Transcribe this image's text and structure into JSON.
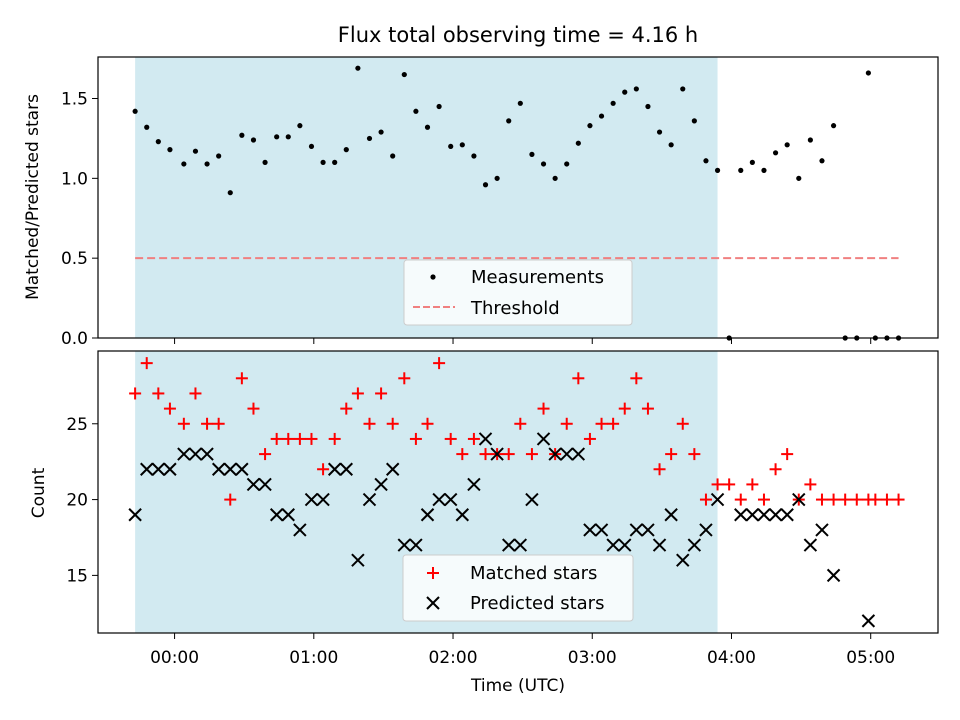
{
  "chart_data": [
    {
      "type": "scatter",
      "title": "Flux total observing time = 4.16 h",
      "xlabel": "",
      "ylabel": "Matched/Predicted stars",
      "ylim": [
        0,
        1.76
      ],
      "yticks": [
        0.0,
        0.5,
        1.0,
        1.5
      ],
      "ytick_labels": [
        "0.0",
        "0.5",
        "1.0",
        "1.5"
      ],
      "shaded_region": {
        "start": "23:43",
        "end": "03:54",
        "color": "#add8e6"
      },
      "threshold": {
        "name": "Threshold",
        "value": 0.5,
        "color": "#f08080",
        "style": "dashed",
        "range": [
          "23:43",
          "05:12"
        ]
      },
      "legend": {
        "placement": "lower center",
        "entries": [
          "Measurements",
          "Threshold"
        ]
      },
      "series": [
        {
          "name": "Measurements",
          "color": "#000000",
          "marker": "dot",
          "points": [
            [
              "23:43",
              1.42
            ],
            [
              "23:48",
              1.32
            ],
            [
              "23:53",
              1.23
            ],
            [
              "23:58",
              1.18
            ],
            [
              "00:04",
              1.09
            ],
            [
              "00:09",
              1.17
            ],
            [
              "00:14",
              1.09
            ],
            [
              "00:19",
              1.14
            ],
            [
              "00:24",
              0.91
            ],
            [
              "00:29",
              1.27
            ],
            [
              "00:34",
              1.24
            ],
            [
              "00:39",
              1.1
            ],
            [
              "00:44",
              1.26
            ],
            [
              "00:49",
              1.26
            ],
            [
              "00:54",
              1.33
            ],
            [
              "00:59",
              1.2
            ],
            [
              "01:04",
              1.1
            ],
            [
              "01:09",
              1.1
            ],
            [
              "01:14",
              1.18
            ],
            [
              "01:19",
              1.69
            ],
            [
              "01:24",
              1.25
            ],
            [
              "01:29",
              1.29
            ],
            [
              "01:34",
              1.14
            ],
            [
              "01:39",
              1.65
            ],
            [
              "01:44",
              1.42
            ],
            [
              "01:49",
              1.32
            ],
            [
              "01:54",
              1.45
            ],
            [
              "01:59",
              1.2
            ],
            [
              "02:04",
              1.21
            ],
            [
              "02:09",
              1.14
            ],
            [
              "02:14",
              0.96
            ],
            [
              "02:19",
              1.0
            ],
            [
              "02:24",
              1.36
            ],
            [
              "02:29",
              1.47
            ],
            [
              "02:34",
              1.15
            ],
            [
              "02:39",
              1.09
            ],
            [
              "02:44",
              1.0
            ],
            [
              "02:49",
              1.09
            ],
            [
              "02:54",
              1.22
            ],
            [
              "02:59",
              1.33
            ],
            [
              "03:04",
              1.39
            ],
            [
              "03:09",
              1.47
            ],
            [
              "03:14",
              1.54
            ],
            [
              "03:19",
              1.56
            ],
            [
              "03:24",
              1.45
            ],
            [
              "03:29",
              1.29
            ],
            [
              "03:34",
              1.21
            ],
            [
              "03:39",
              1.56
            ],
            [
              "03:44",
              1.36
            ],
            [
              "03:49",
              1.11
            ],
            [
              "03:54",
              1.05
            ],
            [
              "03:59",
              0.0
            ],
            [
              "04:04",
              1.05
            ],
            [
              "04:09",
              1.1
            ],
            [
              "04:14",
              1.05
            ],
            [
              "04:19",
              1.16
            ],
            [
              "04:24",
              1.21
            ],
            [
              "04:29",
              1.0
            ],
            [
              "04:34",
              1.24
            ],
            [
              "04:39",
              1.11
            ],
            [
              "04:44",
              1.33
            ],
            [
              "04:49",
              0.0
            ],
            [
              "04:54",
              0.0
            ],
            [
              "04:59",
              1.66
            ],
            [
              "05:02",
              0.0
            ],
            [
              "05:07",
              0.0
            ],
            [
              "05:12",
              0.0
            ]
          ]
        }
      ]
    },
    {
      "type": "scatter",
      "title": "",
      "xlabel": "Time (UTC)",
      "ylabel": "Count",
      "ylim": [
        11.2,
        29.8
      ],
      "yticks": [
        15,
        20,
        25
      ],
      "ytick_labels": [
        "15",
        "20",
        "25"
      ],
      "xticks": [
        "00:00",
        "01:00",
        "02:00",
        "03:00",
        "04:00",
        "05:00"
      ],
      "xlim": [
        "23:27",
        "05:29"
      ],
      "shaded_region": {
        "start": "23:43",
        "end": "03:54",
        "color": "#add8e6"
      },
      "legend": {
        "placement": "lower center",
        "entries": [
          "Matched stars",
          "Predicted stars"
        ]
      },
      "series": [
        {
          "name": "Matched stars",
          "color": "#ff0000",
          "marker": "plus",
          "points": [
            [
              "23:43",
              27
            ],
            [
              "23:48",
              29
            ],
            [
              "23:53",
              27
            ],
            [
              "23:58",
              26
            ],
            [
              "00:04",
              25
            ],
            [
              "00:09",
              27
            ],
            [
              "00:14",
              25
            ],
            [
              "00:19",
              25
            ],
            [
              "00:24",
              20
            ],
            [
              "00:29",
              28
            ],
            [
              "00:34",
              26
            ],
            [
              "00:39",
              23
            ],
            [
              "00:44",
              24
            ],
            [
              "00:49",
              24
            ],
            [
              "00:54",
              24
            ],
            [
              "00:59",
              24
            ],
            [
              "01:04",
              22
            ],
            [
              "01:09",
              24
            ],
            [
              "01:14",
              26
            ],
            [
              "01:19",
              27
            ],
            [
              "01:24",
              25
            ],
            [
              "01:29",
              27
            ],
            [
              "01:34",
              25
            ],
            [
              "01:39",
              28
            ],
            [
              "01:44",
              24
            ],
            [
              "01:49",
              25
            ],
            [
              "01:54",
              29
            ],
            [
              "01:59",
              24
            ],
            [
              "02:04",
              23
            ],
            [
              "02:09",
              24
            ],
            [
              "02:14",
              23
            ],
            [
              "02:19",
              23
            ],
            [
              "02:24",
              23
            ],
            [
              "02:29",
              25
            ],
            [
              "02:34",
              23
            ],
            [
              "02:39",
              26
            ],
            [
              "02:44",
              23
            ],
            [
              "02:49",
              25
            ],
            [
              "02:54",
              28
            ],
            [
              "02:59",
              24
            ],
            [
              "03:04",
              25
            ],
            [
              "03:09",
              25
            ],
            [
              "03:14",
              26
            ],
            [
              "03:19",
              28
            ],
            [
              "03:24",
              26
            ],
            [
              "03:29",
              22
            ],
            [
              "03:34",
              23
            ],
            [
              "03:39",
              25
            ],
            [
              "03:44",
              23
            ],
            [
              "03:49",
              20
            ],
            [
              "03:54",
              21
            ],
            [
              "03:59",
              21
            ],
            [
              "04:04",
              20
            ],
            [
              "04:09",
              21
            ],
            [
              "04:14",
              20
            ],
            [
              "04:19",
              22
            ],
            [
              "04:24",
              23
            ],
            [
              "04:29",
              20
            ],
            [
              "04:34",
              21
            ],
            [
              "04:39",
              20
            ],
            [
              "04:44",
              20
            ],
            [
              "04:49",
              20
            ],
            [
              "04:54",
              20
            ],
            [
              "04:59",
              20
            ],
            [
              "05:02",
              20
            ],
            [
              "05:07",
              20
            ],
            [
              "05:12",
              20
            ]
          ]
        },
        {
          "name": "Predicted stars",
          "color": "#000000",
          "marker": "x",
          "points": [
            [
              "23:43",
              19
            ],
            [
              "23:48",
              22
            ],
            [
              "23:53",
              22
            ],
            [
              "23:58",
              22
            ],
            [
              "00:04",
              23
            ],
            [
              "00:09",
              23
            ],
            [
              "00:14",
              23
            ],
            [
              "00:19",
              22
            ],
            [
              "00:24",
              22
            ],
            [
              "00:29",
              22
            ],
            [
              "00:34",
              21
            ],
            [
              "00:39",
              21
            ],
            [
              "00:44",
              19
            ],
            [
              "00:49",
              19
            ],
            [
              "00:54",
              18
            ],
            [
              "00:59",
              20
            ],
            [
              "01:04",
              20
            ],
            [
              "01:09",
              22
            ],
            [
              "01:14",
              22
            ],
            [
              "01:19",
              16
            ],
            [
              "01:24",
              20
            ],
            [
              "01:29",
              21
            ],
            [
              "01:34",
              22
            ],
            [
              "01:39",
              17
            ],
            [
              "01:44",
              17
            ],
            [
              "01:49",
              19
            ],
            [
              "01:54",
              20
            ],
            [
              "01:59",
              20
            ],
            [
              "02:04",
              19
            ],
            [
              "02:09",
              21
            ],
            [
              "02:14",
              24
            ],
            [
              "02:19",
              23
            ],
            [
              "02:24",
              17
            ],
            [
              "02:29",
              17
            ],
            [
              "02:34",
              20
            ],
            [
              "02:39",
              24
            ],
            [
              "02:44",
              23
            ],
            [
              "02:49",
              23
            ],
            [
              "02:54",
              23
            ],
            [
              "02:59",
              18
            ],
            [
              "03:04",
              18
            ],
            [
              "03:09",
              17
            ],
            [
              "03:14",
              17
            ],
            [
              "03:19",
              18
            ],
            [
              "03:24",
              18
            ],
            [
              "03:29",
              17
            ],
            [
              "03:34",
              19
            ],
            [
              "03:39",
              16
            ],
            [
              "03:44",
              17
            ],
            [
              "03:49",
              18
            ],
            [
              "03:54",
              20
            ],
            [
              "04:04",
              19
            ],
            [
              "04:09",
              19
            ],
            [
              "04:14",
              19
            ],
            [
              "04:19",
              19
            ],
            [
              "04:24",
              19
            ],
            [
              "04:29",
              20
            ],
            [
              "04:34",
              17
            ],
            [
              "04:39",
              18
            ],
            [
              "04:44",
              15
            ],
            [
              "04:59",
              12
            ]
          ]
        }
      ]
    }
  ]
}
